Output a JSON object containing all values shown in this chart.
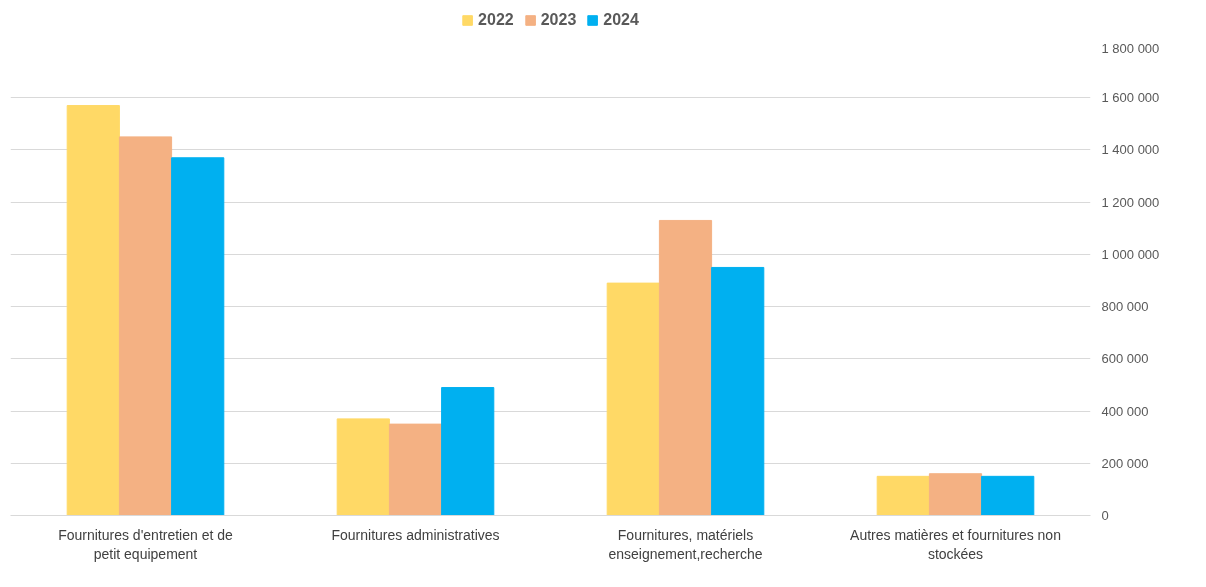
{
  "chart_data": {
    "type": "bar",
    "categories": [
      "Fournitures d'entretien et de petit equipement",
      "Fournitures administratives",
      "Fournitures, matériels enseignement,recherche",
      "Autres matières et fournitures non stockées"
    ],
    "series": [
      {
        "name": "2022",
        "color": "#ffd966",
        "values": [
          1570000,
          370000,
          890000,
          150000
        ]
      },
      {
        "name": "2023",
        "color": "#f4b183",
        "values": [
          1450000,
          350000,
          1130000,
          160000
        ]
      },
      {
        "name": "2024",
        "color": "#00b0f0",
        "values": [
          1370000,
          490000,
          950000,
          150000
        ]
      }
    ],
    "ylim": [
      0,
      1800000
    ],
    "yticks": [
      {
        "value": 0,
        "label": "0"
      },
      {
        "value": 200000,
        "label": "200 000"
      },
      {
        "value": 400000,
        "label": "400 000"
      },
      {
        "value": 600000,
        "label": "600 000"
      },
      {
        "value": 800000,
        "label": "800 000"
      },
      {
        "value": 1000000,
        "label": "1 000 000"
      },
      {
        "value": 1200000,
        "label": "1 200 000"
      },
      {
        "value": 1400000,
        "label": "1 400 000"
      },
      {
        "value": 1600000,
        "label": "1 600 000"
      },
      {
        "value": 1800000,
        "label": "1 800 000"
      }
    ],
    "grid": "y",
    "legend": "top"
  }
}
